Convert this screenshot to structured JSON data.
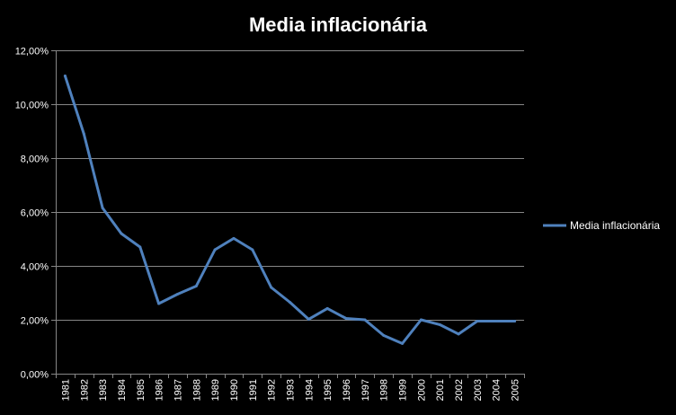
{
  "chart_data": {
    "type": "line",
    "title": "Media inflacionária",
    "xlabel": "",
    "ylabel": "",
    "categories": [
      "1981",
      "1982",
      "1983",
      "1984",
      "1985",
      "1986",
      "1987",
      "1988",
      "1989",
      "1990",
      "1991",
      "1992",
      "1993",
      "1994",
      "1995",
      "1996",
      "1997",
      "1998",
      "1999",
      "2000",
      "2001",
      "2002",
      "2003",
      "2004",
      "2005"
    ],
    "series": [
      {
        "name": "Media inflacionária",
        "values": [
          11.05,
          8.9,
          6.15,
          5.2,
          4.7,
          2.6,
          2.95,
          3.25,
          4.6,
          5.02,
          4.6,
          3.2,
          2.65,
          2.02,
          2.42,
          2.05,
          2.0,
          1.42,
          1.12,
          2.0,
          1.82,
          1.47,
          1.95,
          1.95,
          1.95
        ],
        "color": "#4f81bd"
      }
    ],
    "ylim": [
      0,
      12
    ],
    "yticks": [
      0,
      2,
      4,
      6,
      8,
      10,
      12
    ],
    "ytick_labels": [
      "0,00%",
      "2,00%",
      "4,00%",
      "6,00%",
      "8,00%",
      "10,00%",
      "12,00%"
    ],
    "grid": true,
    "legend_position": "right",
    "background": "#000000",
    "gridline_color": "#868686",
    "text_color": "#ffffff"
  }
}
